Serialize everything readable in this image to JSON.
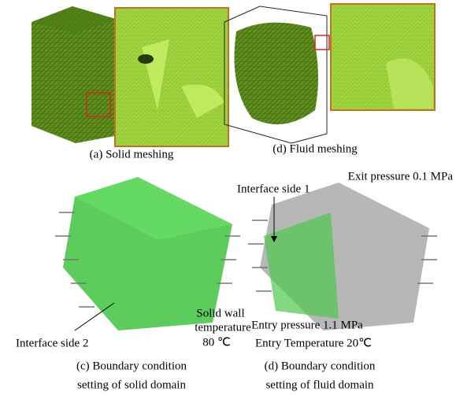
{
  "panels": [
    {
      "caption": [
        "(a) Solid meshing"
      ]
    },
    {
      "caption": [
        "(d) Fluid meshing"
      ]
    },
    {
      "caption": [
        "(c) Boundary condition",
        "setting of solid domain"
      ],
      "annotations": [
        "Interface side 2",
        "Solid wall",
        "temperature",
        "80 ℃"
      ]
    },
    {
      "caption": [
        "(d) Boundary condition",
        "setting of fluid domain"
      ],
      "annotations": [
        "Exit pressure 0.1 MPa",
        "Interface side 1",
        "Entry pressure 1.1 MPa",
        "Entry Temperature 20℃"
      ]
    }
  ]
}
